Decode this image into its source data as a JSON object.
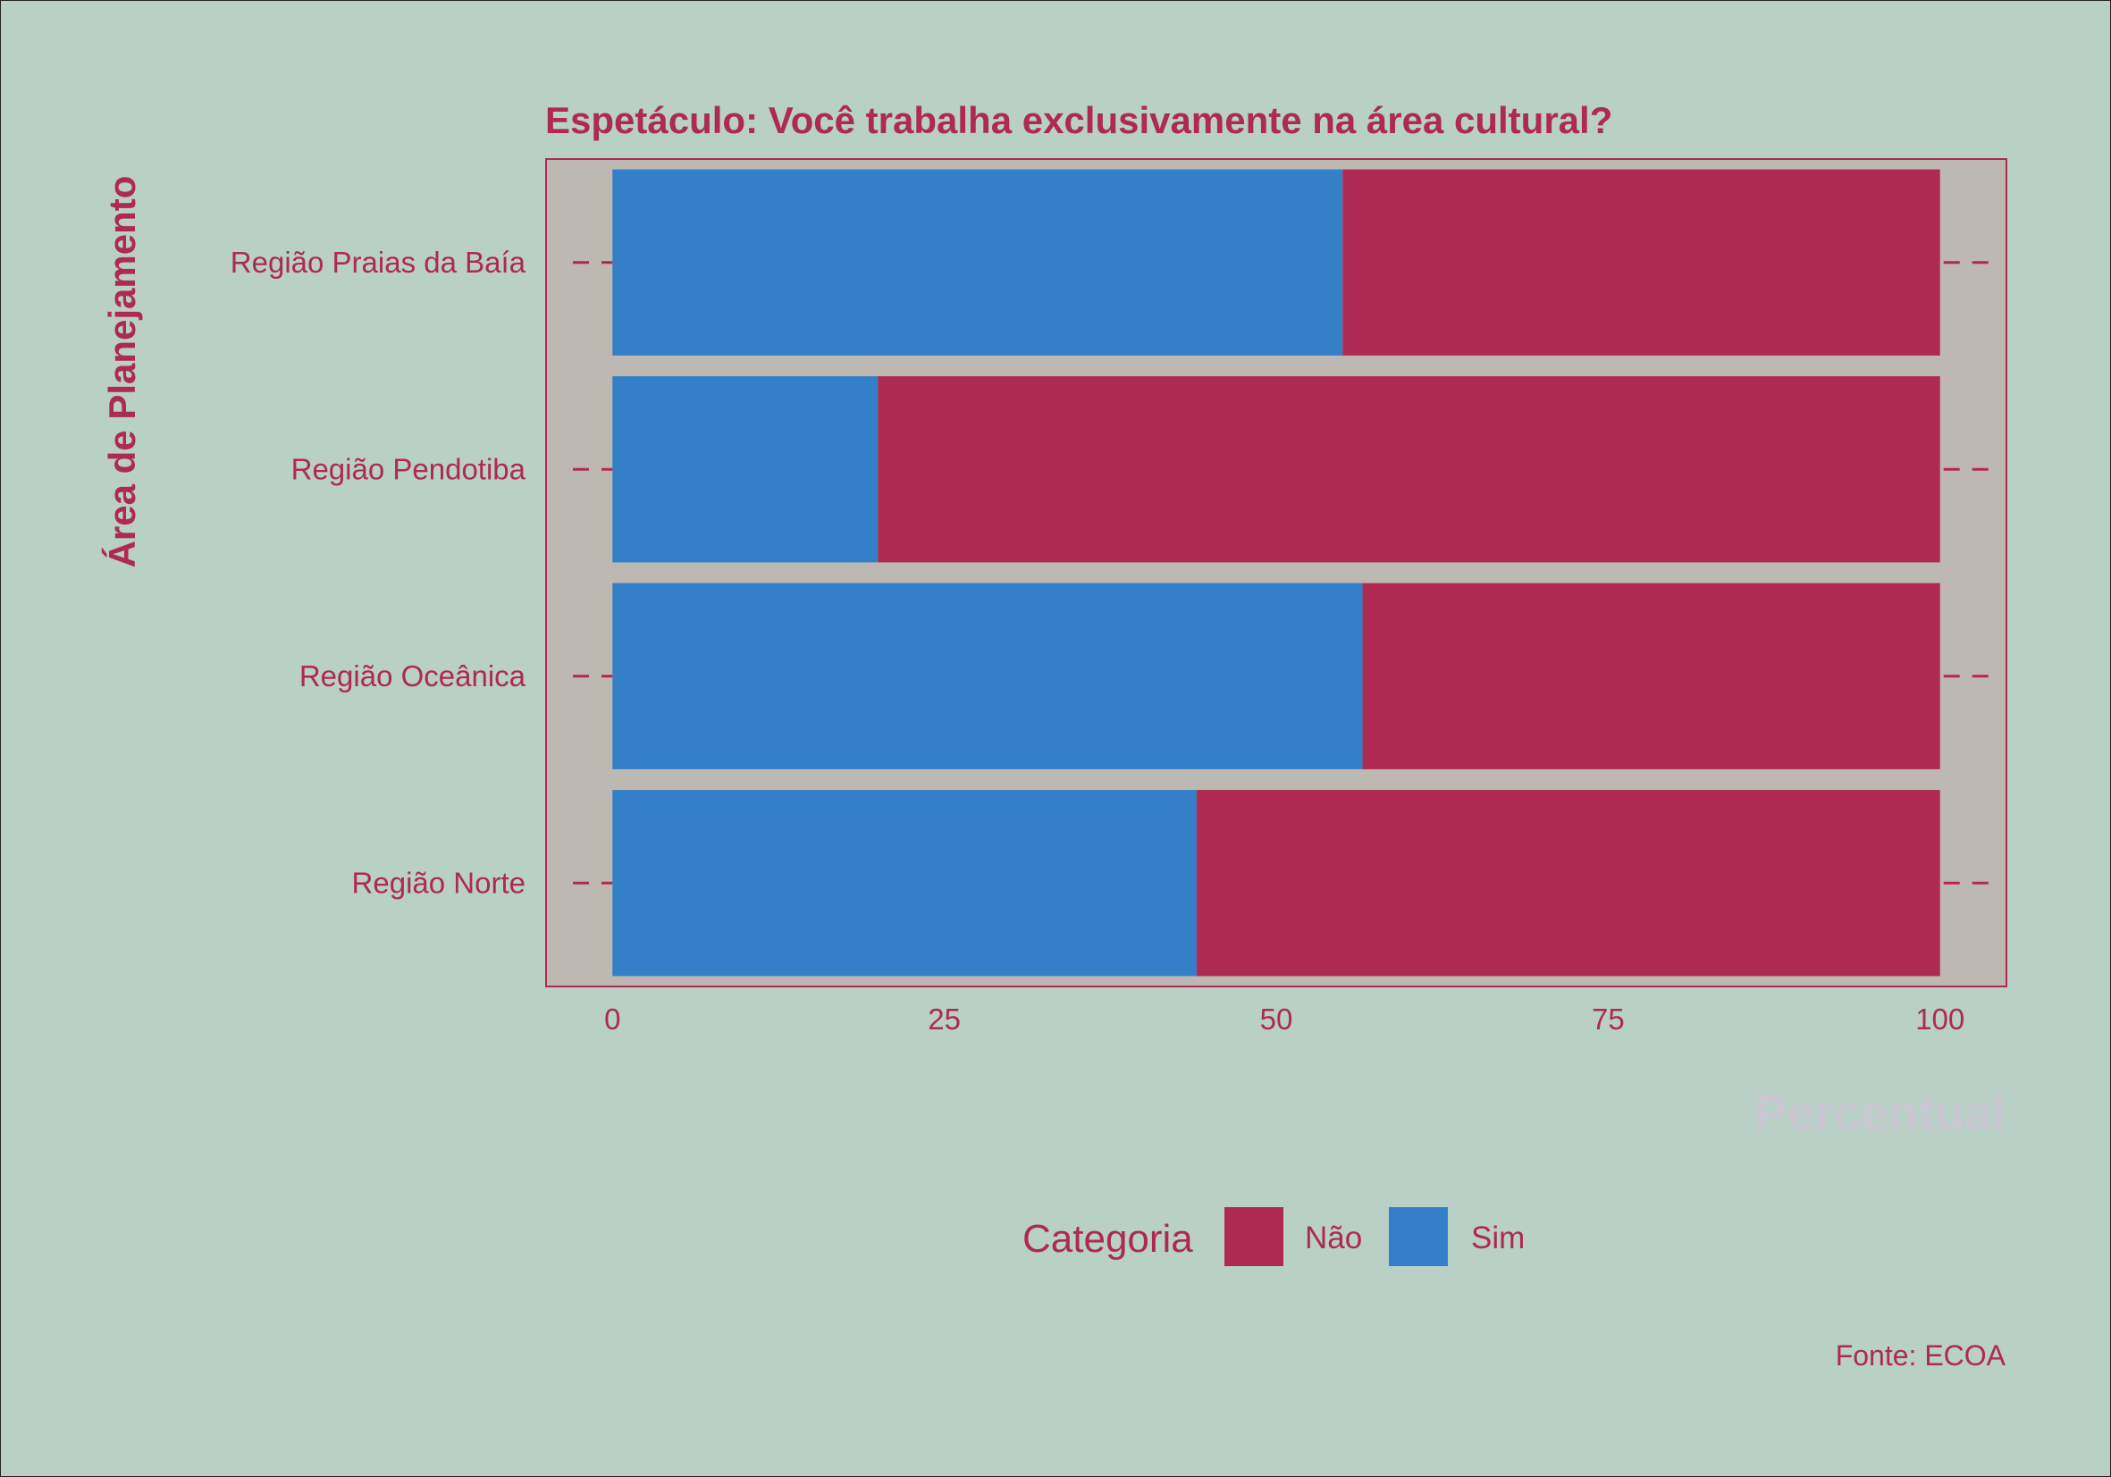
{
  "chart_data": {
    "type": "bar",
    "orientation": "horizontal",
    "stacked": true,
    "title": "Espetáculo: Você trabalha exclusivamente na área cultural?",
    "xlabel": "Percentual",
    "ylabel": "Área de Planejamento",
    "caption": "Fonte: ECOA",
    "categories": [
      "Região Praias da Baía",
      "Região Pendotiba",
      "Região Oceânica",
      "Região Norte"
    ],
    "series": [
      {
        "name": "Sim",
        "color": "#3380c9",
        "values": [
          55,
          20,
          56.5,
          44
        ]
      },
      {
        "name": "Não",
        "color": "#ae2a53",
        "values": [
          45,
          80,
          43.5,
          56
        ]
      }
    ],
    "xlim": [
      -5,
      105
    ],
    "xticks": [
      0,
      25,
      50,
      75,
      100
    ],
    "legend": {
      "title": "Categoria",
      "position": "bottom",
      "items": [
        {
          "label": "Não",
          "color": "#ae2a53"
        },
        {
          "label": "Sim",
          "color": "#3380c9"
        }
      ]
    },
    "grid": false,
    "colors": {
      "background": "#b8d0c6",
      "panel": "#beb8b2",
      "accent": "#ae2a53",
      "axis_title_x": "#c9c8d2"
    }
  }
}
